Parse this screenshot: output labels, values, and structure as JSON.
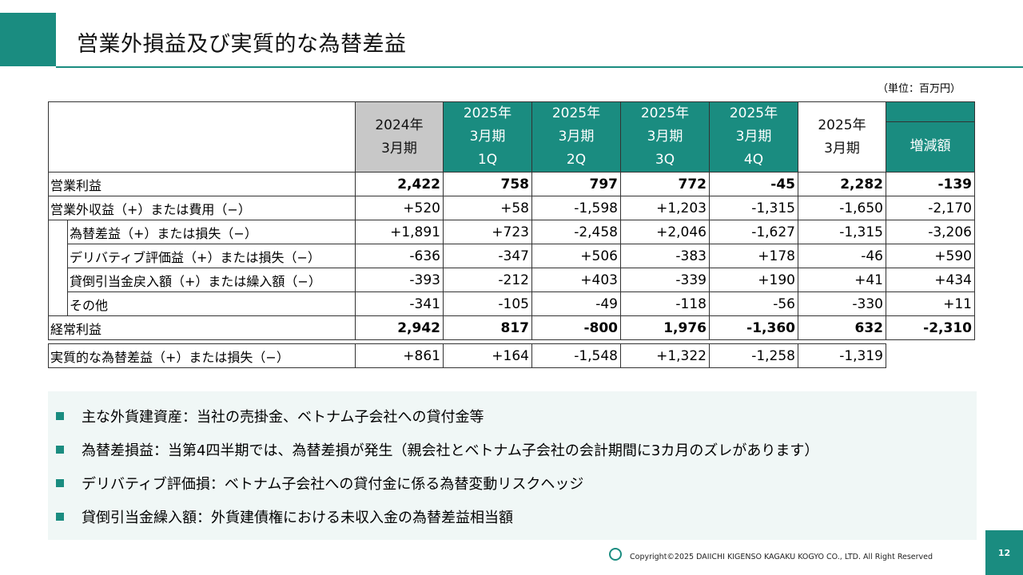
{
  "title": "営業外損益及び実質的な為替差益",
  "unit": "（単位：百万円）",
  "table": {
    "col_headers": [
      {
        "line1": "2024年",
        "line2": "3月期",
        "line3": ""
      },
      {
        "line1": "2025年",
        "line2": "3月期",
        "line3": "1Q"
      },
      {
        "line1": "2025年",
        "line2": "3月期",
        "line3": "2Q"
      },
      {
        "line1": "2025年",
        "line2": "3月期",
        "line3": "3Q"
      },
      {
        "line1": "2025年",
        "line2": "3月期",
        "line3": "4Q"
      },
      {
        "line1": "2025年",
        "line2": "3月期",
        "line3": ""
      }
    ],
    "change_header": "増減額",
    "rows": [
      {
        "label": "営業利益",
        "values": [
          "2,422",
          "758",
          "797",
          "772",
          "-45",
          "2,282",
          "-139"
        ]
      },
      {
        "label": "営業外収益（+）または費用（−）",
        "values": [
          "+520",
          "+58",
          "-1,598",
          "+1,203",
          "-1,315",
          "-1,650",
          "-2,170"
        ]
      },
      {
        "label": "為替差益（+）または損失（−）",
        "values": [
          "+1,891",
          "+723",
          "-2,458",
          "+2,046",
          "-1,627",
          "-1,315",
          "-3,206"
        ]
      },
      {
        "label": "デリバティブ評価益（+）または損失（−）",
        "values": [
          "-636",
          "-347",
          "+506",
          "-383",
          "+178",
          "-46",
          "+590"
        ]
      },
      {
        "label": "貸倒引当金戻入額（+）または繰入額（−）",
        "values": [
          "-393",
          "-212",
          "+403",
          "-339",
          "+190",
          "+41",
          "+434"
        ]
      },
      {
        "label": "その他",
        "values": [
          "-341",
          "-105",
          "-49",
          "-118",
          "-56",
          "-330",
          "+11"
        ]
      },
      {
        "label": "経常利益",
        "values": [
          "2,942",
          "817",
          "-800",
          "1,976",
          "-1,360",
          "632",
          "-2,310"
        ]
      }
    ],
    "real_row": {
      "label": "実質的な為替差益（+）または損失（−）",
      "values": [
        "+861",
        "+164",
        "-1,548",
        "+1,322",
        "-1,258",
        "-1,319"
      ]
    }
  },
  "notes": [
    "主な外貨建資産：当社の売掛金、ベトナム子会社への貸付金等",
    "為替差損益：当第4四半期では、為替差損が発生（親会社とベトナム子会社の会計期間に3カ月のズレがあります）",
    "デリバティブ評価損：ベトナム子会社への貸付金に係る為替変動リスクヘッジ",
    "貸倒引当金繰入額：外貨建債権における未収入金の為替差益相当額"
  ],
  "footer": {
    "copyright": "Copyright©2025 DAIICHI KIGENSO KAGAKU KOGYO CO., LTD. All Right Reserved",
    "page": "12"
  },
  "colors": {
    "accent": "#1a8c80",
    "header_grey": "#c8c8c8",
    "notes_bg": "#f0f7f6"
  }
}
